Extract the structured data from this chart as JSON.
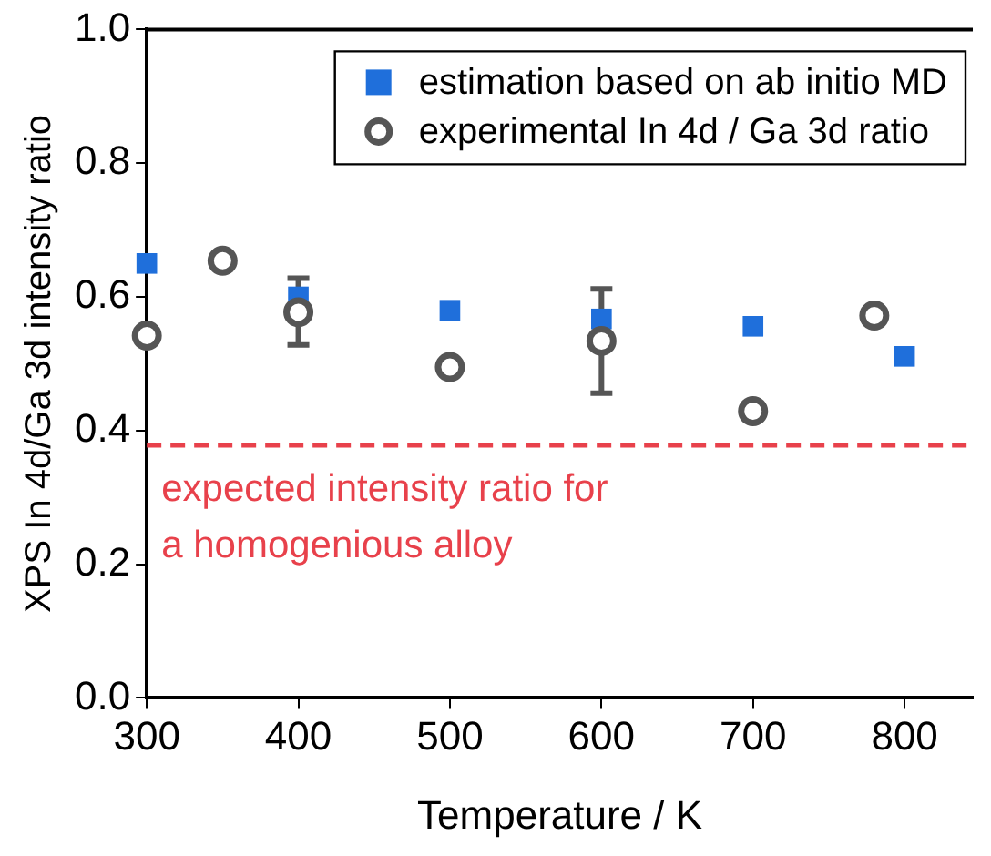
{
  "chart_data": {
    "type": "scatter",
    "xlabel": "Temperature / K",
    "ylabel": "XPS In 4d/Ga 3d intensity ratio",
    "xlim": [
      300,
      845
    ],
    "xticks": [
      300,
      400,
      500,
      600,
      700,
      800
    ],
    "ylim": [
      0,
      1
    ],
    "yticks": [
      {
        "value": 0,
        "label": "0.0"
      },
      0.2,
      0.4,
      0.6,
      0.8,
      {
        "value": 1,
        "label": "1.0"
      }
    ],
    "legend": "top right",
    "grid": false,
    "series": [
      {
        "name": "estimation based on ab initio MD",
        "color": "#1f6fdb",
        "marker": "square",
        "x": [
          300,
          400,
          500,
          600,
          700,
          800
        ],
        "values": [
          0.65,
          0.6,
          0.58,
          0.567,
          0.556,
          0.511
        ]
      },
      {
        "name": "experimental In 4d / Ga 3d ratio",
        "color": "#555555",
        "marker": "circle",
        "x": [
          300,
          350,
          400,
          500,
          600,
          700,
          780
        ],
        "values": [
          0.542,
          0.654,
          0.577,
          0.495,
          0.534,
          0.429,
          0.572
        ],
        "errors": [
          null,
          null,
          [
            0.528,
            0.628
          ],
          null,
          [
            0.456,
            0.612
          ],
          null,
          null
        ]
      }
    ],
    "ref_lines": [
      {
        "axis": "y",
        "value": 0.378,
        "label": "expected intensity ratio for a homogenious alloy",
        "color": "#e8414b",
        "line_style": "dashed"
      }
    ]
  }
}
